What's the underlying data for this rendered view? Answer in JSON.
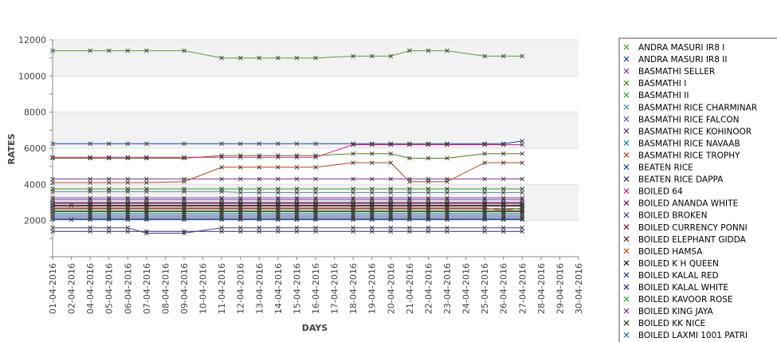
{
  "chart_data": {
    "type": "line",
    "title": "",
    "xlabel": "DAYS",
    "ylabel": "RATES",
    "ylim": [
      0,
      12000
    ],
    "yticks": [
      2000,
      4000,
      6000,
      8000,
      10000,
      12000
    ],
    "grid": true,
    "legend_position": "right",
    "x": [
      "01-04-2016",
      "02-04-2016",
      "04-04-2016",
      "05-04-2016",
      "06-04-2016",
      "07-04-2016",
      "08-04-2016",
      "09-04-2016",
      "10-04-2016",
      "11-04-2016",
      "12-04-2016",
      "13-04-2016",
      "14-04-2016",
      "15-04-2016",
      "16-04-2016",
      "17-04-2016",
      "18-04-2016",
      "19-04-2016",
      "20-04-2016",
      "21-04-2016",
      "22-04-2016",
      "23-04-2016",
      "24-04-2016",
      "25-04-2016",
      "26-04-2016",
      "27-04-2016",
      "28-04-2016",
      "29-04-2016",
      "30-04-2016"
    ],
    "series": [
      {
        "name": "ANDRA MASURI IR8 I",
        "color": "#5c9b3c",
        "values": [
          11400,
          null,
          11400,
          11400,
          11400,
          11400,
          null,
          11400,
          null,
          11000,
          11000,
          11000,
          11000,
          11000,
          11000,
          null,
          11100,
          11100,
          11100,
          11400,
          11400,
          11400,
          null,
          11100,
          11100,
          11100,
          null,
          null,
          null
        ]
      },
      {
        "name": "ANDRA MASURI IR8 II",
        "color": "#1f3fa0",
        "values": [
          6250,
          null,
          6250,
          6250,
          6250,
          6250,
          null,
          6250,
          null,
          6250,
          6250,
          6250,
          6250,
          6250,
          6250,
          null,
          6250,
          6250,
          6250,
          6250,
          6250,
          6250,
          null,
          6250,
          6250,
          6400,
          null,
          null,
          null
        ]
      },
      {
        "name": "BASMATHI  SELLER",
        "color": "#7a3f9d",
        "values": [
          4300,
          null,
          4300,
          4300,
          4300,
          4300,
          null,
          4300,
          null,
          4300,
          4300,
          4300,
          4300,
          4300,
          4300,
          null,
          4300,
          4300,
          4300,
          4300,
          4300,
          4300,
          null,
          4300,
          4300,
          4300,
          null,
          null,
          null
        ]
      },
      {
        "name": "BASMATHI I",
        "color": "#4f7f1e",
        "values": [
          5450,
          null,
          5450,
          5450,
          5450,
          5450,
          null,
          5450,
          null,
          5600,
          5600,
          5600,
          5600,
          5600,
          5600,
          null,
          5700,
          5700,
          5700,
          5450,
          5450,
          5450,
          null,
          5700,
          5700,
          5700,
          null,
          null,
          null
        ]
      },
      {
        "name": "BASMATHI II",
        "color": "#2ca02c",
        "values": [
          3750,
          null,
          3750,
          3750,
          3750,
          3750,
          null,
          3750,
          null,
          3750,
          3750,
          3750,
          3750,
          3750,
          3750,
          null,
          3750,
          3750,
          3750,
          3750,
          3750,
          3750,
          null,
          3750,
          3750,
          3750,
          null,
          null,
          null
        ]
      },
      {
        "name": "BASMATHI RICE CHARMINAR",
        "color": "#6a8f9a",
        "values": [
          3600,
          null,
          3600,
          3600,
          3600,
          3600,
          null,
          3600,
          null,
          3600,
          3550,
          3550,
          3550,
          3550,
          3550,
          null,
          3550,
          3550,
          3550,
          3550,
          3550,
          3550,
          null,
          3550,
          3550,
          3550,
          null,
          null,
          null
        ]
      },
      {
        "name": "BASMATHI RICE FALCON",
        "color": "#5a5acd",
        "values": [
          3150,
          null,
          3150,
          3150,
          3150,
          3150,
          null,
          3150,
          null,
          3150,
          3150,
          3150,
          3150,
          3150,
          3150,
          null,
          3150,
          3150,
          3150,
          3150,
          3150,
          3150,
          null,
          3150,
          3150,
          3150,
          null,
          null,
          null
        ]
      },
      {
        "name": "BASMATHI RICE KOHINOOR",
        "color": "#6b2c6b",
        "values": [
          2950,
          null,
          2950,
          2950,
          2950,
          2950,
          null,
          2950,
          null,
          2950,
          2950,
          2950,
          2950,
          2950,
          2950,
          null,
          2950,
          2950,
          2950,
          2950,
          2950,
          2950,
          null,
          2950,
          2950,
          2950,
          null,
          null,
          null
        ]
      },
      {
        "name": "BASMATHI RICE NAVAAB",
        "color": "#1a8a8a",
        "values": [
          2400,
          null,
          2400,
          2400,
          2400,
          2400,
          null,
          2400,
          null,
          2400,
          2400,
          2400,
          2400,
          2400,
          2400,
          null,
          2400,
          2400,
          2400,
          2400,
          2400,
          2400,
          null,
          2400,
          2400,
          2400,
          null,
          null,
          null
        ]
      },
      {
        "name": "BASMATHI RICE TROPHY",
        "color": "#b5441b",
        "values": [
          4100,
          null,
          4100,
          4100,
          4100,
          4100,
          null,
          4150,
          null,
          4950,
          4950,
          4950,
          4950,
          4950,
          4950,
          null,
          5200,
          5200,
          5200,
          4150,
          4150,
          4150,
          null,
          5200,
          5200,
          5200,
          null,
          null,
          null
        ]
      },
      {
        "name": "BEATEN RICE",
        "color": "#1f4fa0",
        "values": [
          2300,
          null,
          2300,
          2300,
          2300,
          2300,
          null,
          2300,
          null,
          2300,
          2300,
          2300,
          2300,
          2300,
          2300,
          null,
          2300,
          2300,
          2300,
          2300,
          2300,
          2300,
          null,
          2300,
          2300,
          2300,
          null,
          null,
          null
        ]
      },
      {
        "name": "BEATEN RICE DAPPA",
        "color": "#2a2a6a",
        "values": [
          1400,
          null,
          1400,
          1400,
          1400,
          1400,
          null,
          1400,
          null,
          1400,
          1400,
          1400,
          1400,
          1400,
          1400,
          null,
          1400,
          1400,
          1400,
          1400,
          1400,
          1400,
          null,
          1400,
          1400,
          1400,
          null,
          null,
          null
        ]
      },
      {
        "name": "BOILED 64",
        "color": "#d81b7a",
        "values": [
          5500,
          null,
          5500,
          5500,
          5500,
          5500,
          null,
          5500,
          null,
          5500,
          5500,
          5500,
          5500,
          5500,
          5500,
          null,
          6200,
          6200,
          6200,
          6200,
          6200,
          6200,
          null,
          6200,
          6200,
          6200,
          null,
          null,
          null
        ]
      },
      {
        "name": "BOILED ANANDA WHITE",
        "color": "#5a1f4f",
        "values": [
          2800,
          null,
          2800,
          2800,
          2800,
          2800,
          null,
          2800,
          null,
          2800,
          2800,
          2800,
          2800,
          2800,
          2800,
          null,
          2800,
          2800,
          2800,
          2800,
          2800,
          2800,
          null,
          2800,
          2800,
          2800,
          null,
          null,
          null
        ]
      },
      {
        "name": "BOILED BROKEN",
        "color": "#4b3c8f",
        "values": [
          1600,
          null,
          1600,
          1600,
          1600,
          1300,
          null,
          1300,
          null,
          1600,
          1600,
          1600,
          1600,
          1600,
          1600,
          null,
          1600,
          1600,
          1600,
          1600,
          1600,
          1600,
          null,
          1600,
          1600,
          1600,
          null,
          null,
          null
        ]
      },
      {
        "name": "BOILED CURRENCY PONNI",
        "color": "#8a1a3a",
        "values": [
          3000,
          null,
          3000,
          3000,
          3000,
          3000,
          null,
          3000,
          null,
          3000,
          3000,
          3000,
          3000,
          3000,
          3000,
          null,
          3000,
          3000,
          3000,
          3000,
          3000,
          3000,
          null,
          3000,
          3000,
          3000,
          null,
          null,
          null
        ]
      },
      {
        "name": "BOILED ELEPHANT GIDDA",
        "color": "#5a1a1a",
        "values": [
          2650,
          null,
          2650,
          2650,
          2650,
          2650,
          null,
          2650,
          null,
          2650,
          2650,
          2650,
          2650,
          2650,
          2650,
          null,
          2650,
          2650,
          2650,
          2650,
          2650,
          2650,
          null,
          2650,
          2650,
          2650,
          null,
          null,
          null
        ]
      },
      {
        "name": "BOILED HAMSA",
        "color": "#c8501e",
        "values": [
          2700,
          null,
          2700,
          2700,
          2700,
          2700,
          null,
          2700,
          null,
          2700,
          2700,
          2700,
          2700,
          2700,
          2700,
          null,
          2700,
          2700,
          2700,
          2700,
          2700,
          2700,
          null,
          2700,
          2550,
          2550,
          null,
          null,
          null
        ]
      },
      {
        "name": "BOILED K H QUEEN",
        "color": "#111111",
        "values": [
          2500,
          null,
          2500,
          2500,
          2500,
          2500,
          null,
          2500,
          null,
          2500,
          2500,
          2500,
          2500,
          2500,
          2500,
          null,
          2500,
          2500,
          2500,
          2500,
          2500,
          2500,
          null,
          2500,
          2500,
          2500,
          null,
          null,
          null
        ]
      },
      {
        "name": "BOILED KALAL RED",
        "color": "#2a3a8a",
        "values": [
          2200,
          null,
          2200,
          2200,
          2200,
          2200,
          null,
          2200,
          null,
          2200,
          2200,
          2200,
          2200,
          2200,
          2200,
          null,
          2200,
          2200,
          2200,
          2200,
          2200,
          2200,
          null,
          2200,
          2200,
          2200,
          null,
          null,
          null
        ]
      },
      {
        "name": "BOILED KALAL WHITE",
        "color": "#3a2a7a",
        "values": [
          2100,
          null,
          2100,
          2100,
          2100,
          2100,
          null,
          2100,
          null,
          2100,
          2100,
          2100,
          2100,
          2100,
          2100,
          null,
          2100,
          2100,
          2100,
          2100,
          2100,
          2100,
          null,
          2100,
          2100,
          2100,
          null,
          null,
          null
        ]
      },
      {
        "name": "BOILED KAVOOR ROSE",
        "color": "#3aa02a",
        "values": [
          2550,
          null,
          2550,
          2550,
          2550,
          2550,
          null,
          2550,
          null,
          2550,
          2550,
          2550,
          2550,
          2550,
          2550,
          null,
          2550,
          2550,
          2550,
          2550,
          2550,
          2550,
          null,
          2550,
          2550,
          2700,
          null,
          null,
          null
        ]
      },
      {
        "name": "BOILED KING JAYA",
        "color": "#8a2a9a",
        "values": [
          3250,
          null,
          3250,
          3250,
          3250,
          3250,
          null,
          3250,
          null,
          3250,
          3250,
          3250,
          3250,
          3250,
          3250,
          null,
          3250,
          3250,
          3250,
          3250,
          3250,
          3250,
          null,
          3250,
          3250,
          3250,
          null,
          null,
          null
        ]
      },
      {
        "name": "BOILED KK NICE",
        "color": "#2a3a1a",
        "values": [
          2850,
          2850,
          2850,
          2850,
          2850,
          2850,
          null,
          2850,
          null,
          2850,
          2850,
          2850,
          2850,
          2850,
          2850,
          null,
          2850,
          2850,
          2850,
          2850,
          2850,
          2850,
          null,
          2850,
          2850,
          2850,
          null,
          null,
          null
        ]
      },
      {
        "name": "BOILED LAXMI 1001 PATRI",
        "color": "#1f6fb0",
        "values": [
          2050,
          2050,
          2050,
          2050,
          2050,
          2050,
          null,
          2050,
          null,
          2050,
          2050,
          2050,
          2050,
          2050,
          2050,
          null,
          2050,
          2050,
          2050,
          2050,
          2050,
          2050,
          null,
          2050,
          2050,
          2050,
          null,
          null,
          null
        ]
      }
    ]
  }
}
